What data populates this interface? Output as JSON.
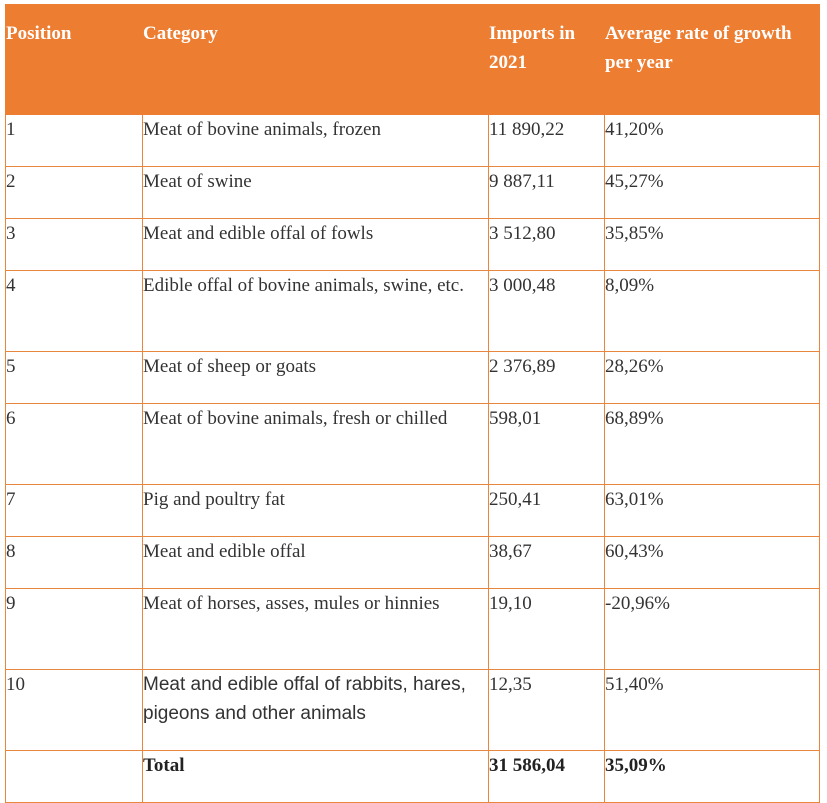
{
  "table": {
    "headers": {
      "position": "Position",
      "category": "Category",
      "imports": "Imports in 2021",
      "rate": "Average rate of growth per year"
    },
    "rows": [
      {
        "position": "1",
        "category": "Meat of bovine animals, frozen",
        "imports": "11 890,22",
        "rate": "41,20%"
      },
      {
        "position": "2",
        "category": "Meat of swine",
        "imports": "9 887,11",
        "rate": "45,27%"
      },
      {
        "position": "3",
        "category": "Meat and edible offal of fowls",
        "imports": "3 512,80",
        "rate": "35,85%"
      },
      {
        "position": "4",
        "category": "Edible offal of bovine animals, swine, etc.",
        "imports": "3 000,48",
        "rate": "8,09%"
      },
      {
        "position": "5",
        "category": "Meat of sheep or goats",
        "imports": "2 376,89",
        "rate": "28,26%"
      },
      {
        "position": "6",
        "category": "Meat of bovine animals, fresh or chilled",
        "imports": "598,01",
        "rate": "68,89%"
      },
      {
        "position": "7",
        "category": "Pig and poultry fat",
        "imports": "250,41",
        "rate": "63,01%"
      },
      {
        "position": "8",
        "category": "Meat and edible offal",
        "imports": "38,67",
        "rate": "60,43%"
      },
      {
        "position": "9",
        "category": "Meat of horses, asses, mules or hinnies",
        "imports": "19,10",
        "rate": "-20,96%"
      },
      {
        "position": "10",
        "category": "Meat and edible offal of rabbits, hares, pigeons and other animals",
        "imports": "12,35",
        "rate": "51,40%"
      }
    ],
    "total": {
      "label": "Total",
      "imports": "31 586,04",
      "rate": "35,09%"
    }
  },
  "colors": {
    "header_background": "#ed7d31",
    "header_text": "#ffffff",
    "border": "#e8863f"
  }
}
